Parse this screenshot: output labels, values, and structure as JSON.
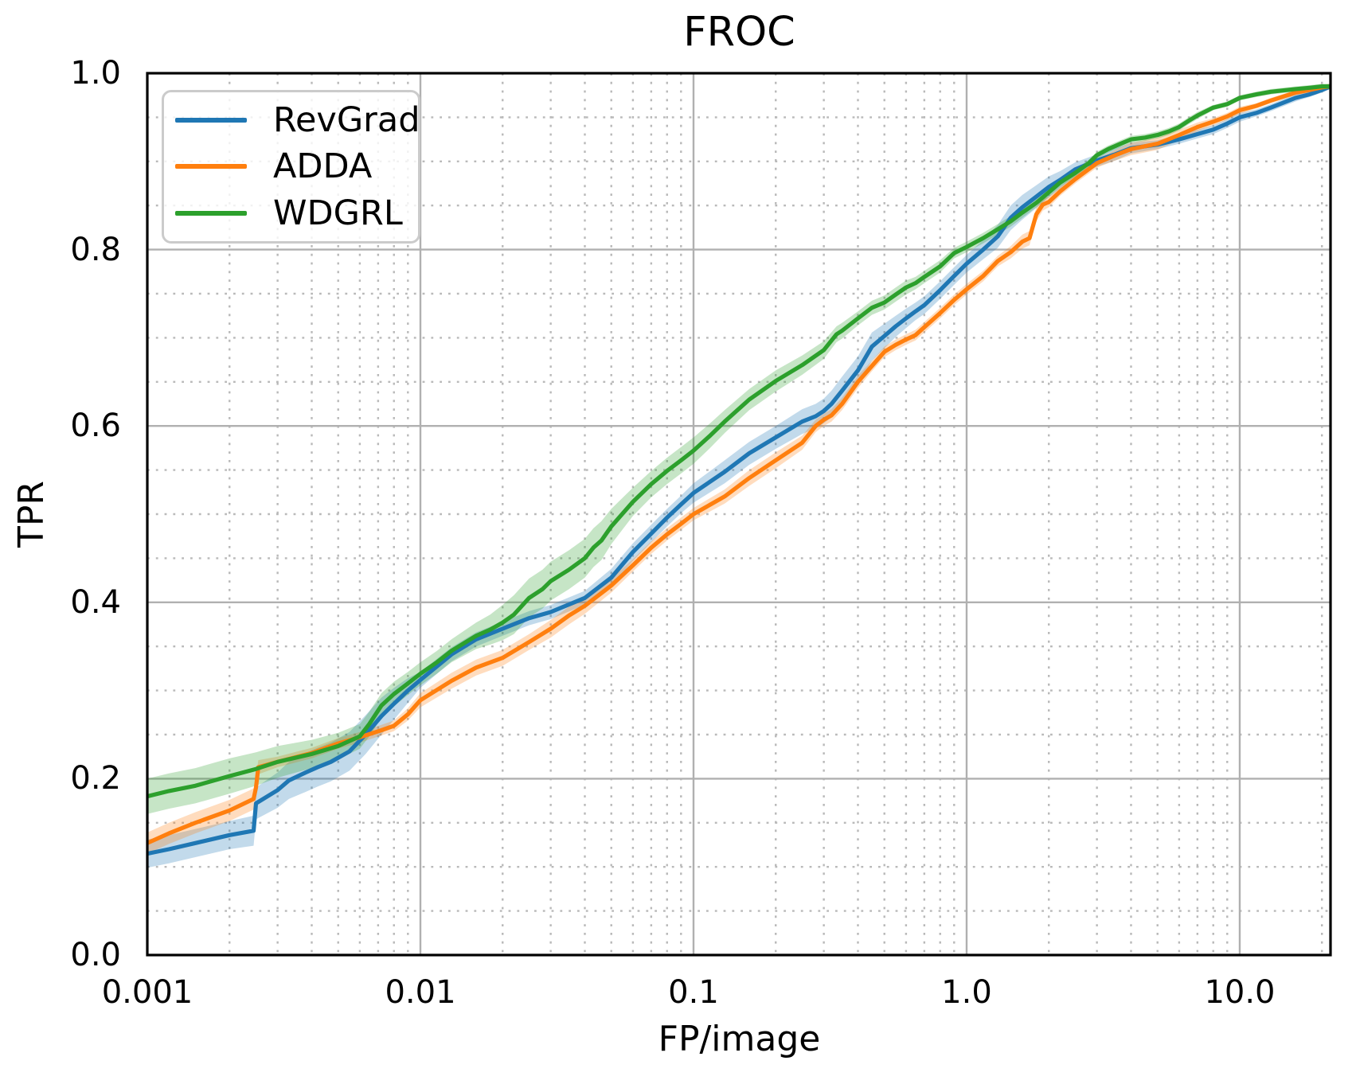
{
  "title": "FROC",
  "axes": {
    "xlabel": "FP/image",
    "ylabel": "TPR",
    "xticks": [
      {
        "v": 0.001,
        "label": "0.001"
      },
      {
        "v": 0.01,
        "label": "0.01"
      },
      {
        "v": 0.1,
        "label": "0.1"
      },
      {
        "v": 1.0,
        "label": "1.0"
      },
      {
        "v": 10.0,
        "label": "10.0"
      }
    ],
    "yticks": [
      {
        "v": 0.0,
        "label": "0.0"
      },
      {
        "v": 0.2,
        "label": "0.2"
      },
      {
        "v": 0.4,
        "label": "0.4"
      },
      {
        "v": 0.6,
        "label": "0.6"
      },
      {
        "v": 0.8,
        "label": "0.8"
      },
      {
        "v": 1.0,
        "label": "1.0"
      }
    ]
  },
  "style": {
    "grid_major_color": "#b0b0b0",
    "grid_minor_color": "#b9b9b9",
    "spine_color": "#000000",
    "background": "#ffffff",
    "band_alpha": 0.27,
    "line_width": 5.2
  },
  "chart_data": {
    "type": "line",
    "title": "FROC",
    "xlabel": "FP/image",
    "ylabel": "TPR",
    "xscale": "log",
    "xlim": [
      0.001,
      21.5
    ],
    "ylim": [
      0.0,
      1.0
    ],
    "grid": "major-solid-minor-dotted",
    "legend_position": "upper-left",
    "series": [
      {
        "name": "RevGrad",
        "color": "#1f77b4",
        "x": [
          0.001,
          0.0012,
          0.0015,
          0.002,
          0.00245,
          0.0025,
          0.003,
          0.0033,
          0.0038,
          0.0042,
          0.0047,
          0.0055,
          0.0063,
          0.0072,
          0.008,
          0.009,
          0.01,
          0.013,
          0.016,
          0.02,
          0.025,
          0.03,
          0.04,
          0.05,
          0.06,
          0.07,
          0.08,
          0.09,
          0.1,
          0.13,
          0.16,
          0.2,
          0.25,
          0.28,
          0.3,
          0.32,
          0.35,
          0.4,
          0.45,
          0.5,
          0.55,
          0.6,
          0.65,
          0.7,
          0.8,
          0.9,
          1.0,
          1.15,
          1.3,
          1.45,
          1.6,
          1.8,
          2.0,
          2.2,
          2.5,
          3.0,
          3.5,
          4.0,
          5.0,
          6.0,
          7.0,
          8.0,
          9.0,
          10.0,
          11.5,
          13.0,
          16.0,
          18.0,
          20.0,
          21.5
        ],
        "y": [
          0.115,
          0.12,
          0.127,
          0.136,
          0.141,
          0.172,
          0.187,
          0.198,
          0.207,
          0.213,
          0.219,
          0.231,
          0.25,
          0.271,
          0.285,
          0.3,
          0.312,
          0.341,
          0.358,
          0.37,
          0.382,
          0.389,
          0.405,
          0.428,
          0.457,
          0.478,
          0.496,
          0.511,
          0.524,
          0.548,
          0.569,
          0.587,
          0.605,
          0.611,
          0.617,
          0.625,
          0.64,
          0.663,
          0.69,
          0.702,
          0.713,
          0.722,
          0.73,
          0.737,
          0.754,
          0.77,
          0.784,
          0.8,
          0.815,
          0.836,
          0.848,
          0.86,
          0.871,
          0.879,
          0.891,
          0.901,
          0.908,
          0.915,
          0.919,
          0.925,
          0.931,
          0.936,
          0.943,
          0.95,
          0.955,
          0.961,
          0.972,
          0.976,
          0.981,
          0.985
        ],
        "band_halfwidth": [
          0.016,
          0.016,
          0.016,
          0.016,
          0.017,
          0.018,
          0.02,
          0.021,
          0.022,
          0.022,
          0.022,
          0.022,
          0.022,
          0.021,
          0.018,
          0.014,
          0.009,
          0.008,
          0.008,
          0.008,
          0.008,
          0.008,
          0.008,
          0.01,
          0.01,
          0.01,
          0.01,
          0.01,
          0.011,
          0.013,
          0.013,
          0.013,
          0.014,
          0.014,
          0.014,
          0.015,
          0.016,
          0.016,
          0.016,
          0.014,
          0.012,
          0.011,
          0.01,
          0.01,
          0.01,
          0.01,
          0.01,
          0.011,
          0.013,
          0.014,
          0.014,
          0.013,
          0.012,
          0.01,
          0.008,
          0.007,
          0.007,
          0.006,
          0.005,
          0.005,
          0.005,
          0.005,
          0.005,
          0.005,
          0.004,
          0.004,
          0.004,
          0.003,
          0.003,
          0.003
        ]
      },
      {
        "name": "ADDA",
        "color": "#ff7f0e",
        "x": [
          0.001,
          0.0012,
          0.0015,
          0.002,
          0.00245,
          0.0025,
          0.00255,
          0.003,
          0.004,
          0.005,
          0.006,
          0.0072,
          0.008,
          0.009,
          0.01,
          0.013,
          0.016,
          0.02,
          0.025,
          0.03,
          0.035,
          0.04,
          0.05,
          0.06,
          0.07,
          0.08,
          0.09,
          0.1,
          0.13,
          0.16,
          0.2,
          0.25,
          0.28,
          0.3,
          0.32,
          0.35,
          0.4,
          0.45,
          0.5,
          0.55,
          0.6,
          0.65,
          0.7,
          0.8,
          0.9,
          1.0,
          1.15,
          1.3,
          1.45,
          1.6,
          1.7,
          1.8,
          1.9,
          2.0,
          2.2,
          2.5,
          3.0,
          3.5,
          4.0,
          5.0,
          6.0,
          7.0,
          8.0,
          9.0,
          10.0,
          11.5,
          13.0,
          16.0,
          18.0,
          20.0,
          21.5
        ],
        "y": [
          0.127,
          0.138,
          0.15,
          0.164,
          0.177,
          0.19,
          0.213,
          0.219,
          0.229,
          0.24,
          0.247,
          0.255,
          0.26,
          0.273,
          0.289,
          0.311,
          0.326,
          0.337,
          0.355,
          0.37,
          0.385,
          0.396,
          0.419,
          0.442,
          0.462,
          0.477,
          0.489,
          0.5,
          0.52,
          0.541,
          0.561,
          0.581,
          0.6,
          0.607,
          0.612,
          0.625,
          0.65,
          0.668,
          0.684,
          0.692,
          0.698,
          0.703,
          0.712,
          0.728,
          0.743,
          0.755,
          0.77,
          0.787,
          0.797,
          0.809,
          0.813,
          0.84,
          0.851,
          0.854,
          0.866,
          0.88,
          0.898,
          0.907,
          0.914,
          0.92,
          0.93,
          0.939,
          0.945,
          0.951,
          0.958,
          0.963,
          0.969,
          0.978,
          0.981,
          0.984,
          0.985
        ],
        "band_halfwidth": [
          0.012,
          0.012,
          0.012,
          0.012,
          0.012,
          0.012,
          0.008,
          0.006,
          0.006,
          0.006,
          0.006,
          0.006,
          0.006,
          0.007,
          0.008,
          0.009,
          0.009,
          0.009,
          0.009,
          0.01,
          0.01,
          0.009,
          0.008,
          0.007,
          0.007,
          0.007,
          0.007,
          0.007,
          0.008,
          0.009,
          0.009,
          0.008,
          0.007,
          0.007,
          0.007,
          0.007,
          0.007,
          0.006,
          0.006,
          0.006,
          0.006,
          0.006,
          0.006,
          0.006,
          0.006,
          0.006,
          0.006,
          0.006,
          0.007,
          0.008,
          0.008,
          0.008,
          0.007,
          0.006,
          0.005,
          0.005,
          0.005,
          0.006,
          0.007,
          0.007,
          0.006,
          0.005,
          0.004,
          0.004,
          0.004,
          0.003,
          0.003,
          0.003,
          0.003,
          0.003,
          0.003
        ]
      },
      {
        "name": "WDGRL",
        "color": "#2ca02c",
        "x": [
          0.001,
          0.0012,
          0.0015,
          0.002,
          0.0025,
          0.003,
          0.004,
          0.005,
          0.006,
          0.0065,
          0.0072,
          0.008,
          0.009,
          0.01,
          0.0115,
          0.013,
          0.016,
          0.018,
          0.02,
          0.022,
          0.025,
          0.028,
          0.03,
          0.035,
          0.04,
          0.043,
          0.046,
          0.05,
          0.06,
          0.07,
          0.08,
          0.09,
          0.1,
          0.115,
          0.13,
          0.16,
          0.2,
          0.25,
          0.3,
          0.334,
          0.35,
          0.4,
          0.45,
          0.5,
          0.55,
          0.6,
          0.65,
          0.7,
          0.8,
          0.9,
          1.0,
          1.15,
          1.3,
          1.45,
          1.6,
          1.8,
          2.0,
          2.2,
          2.5,
          2.8,
          3.0,
          3.3,
          3.6,
          4.0,
          4.5,
          5.0,
          5.5,
          6.0,
          6.5,
          7.0,
          8.0,
          9.0,
          10.0,
          11.5,
          13.0,
          16.0,
          18.0,
          20.0,
          21.5
        ],
        "y": [
          0.18,
          0.186,
          0.192,
          0.203,
          0.211,
          0.219,
          0.228,
          0.237,
          0.248,
          0.262,
          0.283,
          0.296,
          0.308,
          0.319,
          0.332,
          0.345,
          0.362,
          0.369,
          0.377,
          0.386,
          0.405,
          0.415,
          0.424,
          0.437,
          0.45,
          0.462,
          0.47,
          0.486,
          0.514,
          0.534,
          0.549,
          0.561,
          0.572,
          0.589,
          0.605,
          0.63,
          0.651,
          0.669,
          0.686,
          0.704,
          0.708,
          0.722,
          0.734,
          0.74,
          0.749,
          0.757,
          0.762,
          0.769,
          0.781,
          0.796,
          0.803,
          0.813,
          0.823,
          0.832,
          0.842,
          0.853,
          0.865,
          0.876,
          0.887,
          0.898,
          0.907,
          0.914,
          0.919,
          0.925,
          0.927,
          0.93,
          0.934,
          0.939,
          0.946,
          0.952,
          0.961,
          0.965,
          0.972,
          0.976,
          0.979,
          0.982,
          0.9835,
          0.985,
          0.985
        ],
        "band_halfwidth": [
          0.02,
          0.02,
          0.02,
          0.02,
          0.019,
          0.018,
          0.016,
          0.015,
          0.014,
          0.014,
          0.014,
          0.014,
          0.013,
          0.013,
          0.013,
          0.013,
          0.015,
          0.017,
          0.02,
          0.022,
          0.022,
          0.022,
          0.022,
          0.022,
          0.022,
          0.022,
          0.022,
          0.02,
          0.016,
          0.015,
          0.015,
          0.015,
          0.015,
          0.014,
          0.013,
          0.012,
          0.012,
          0.011,
          0.01,
          0.009,
          0.009,
          0.008,
          0.008,
          0.008,
          0.008,
          0.008,
          0.007,
          0.007,
          0.007,
          0.006,
          0.006,
          0.006,
          0.006,
          0.006,
          0.006,
          0.005,
          0.005,
          0.005,
          0.004,
          0.004,
          0.004,
          0.004,
          0.004,
          0.004,
          0.004,
          0.004,
          0.004,
          0.004,
          0.004,
          0.004,
          0.003,
          0.003,
          0.003,
          0.003,
          0.003,
          0.003,
          0.003,
          0.003,
          0.003
        ]
      }
    ]
  }
}
